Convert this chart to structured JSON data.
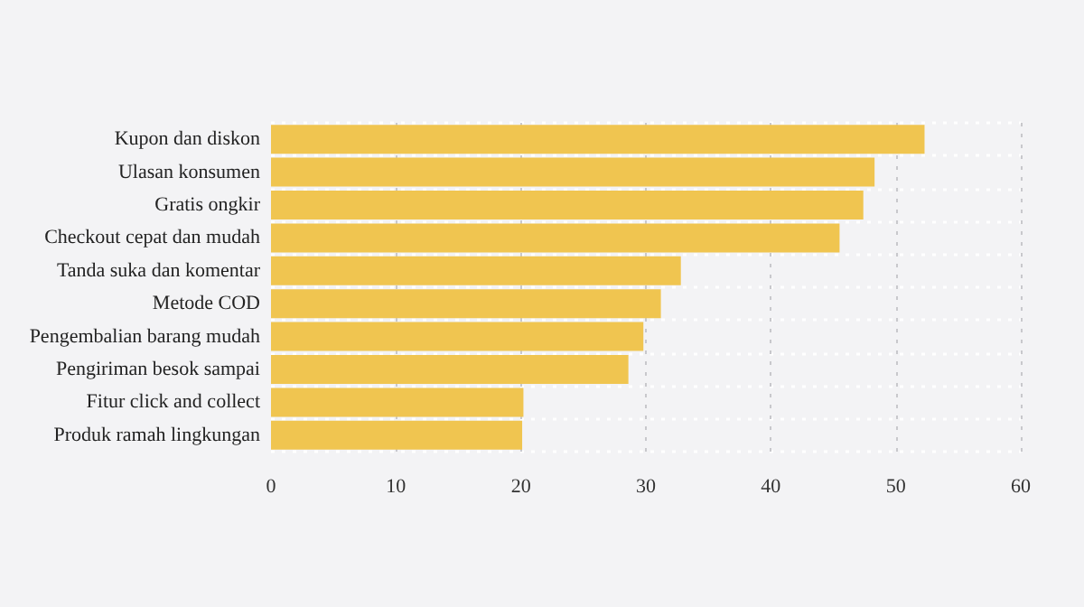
{
  "chart_data": {
    "type": "bar",
    "orientation": "horizontal",
    "categories": [
      "Kupon dan diskon",
      "Ulasan konsumen",
      "Gratis ongkir",
      "Checkout cepat dan mudah",
      "Tanda suka dan komentar",
      "Metode COD",
      "Pengembalian barang mudah",
      "Pengiriman besok sampai",
      "Fitur click and collect",
      "Produk ramah lingkungan"
    ],
    "values": [
      52.3,
      48.3,
      47.4,
      45.5,
      32.8,
      31.2,
      29.8,
      28.6,
      20.2,
      20.1
    ],
    "color": "#f0c550",
    "xlim": [
      0,
      60
    ],
    "xticks": [
      0,
      10,
      20,
      30,
      40,
      50,
      60
    ],
    "grid": true
  }
}
